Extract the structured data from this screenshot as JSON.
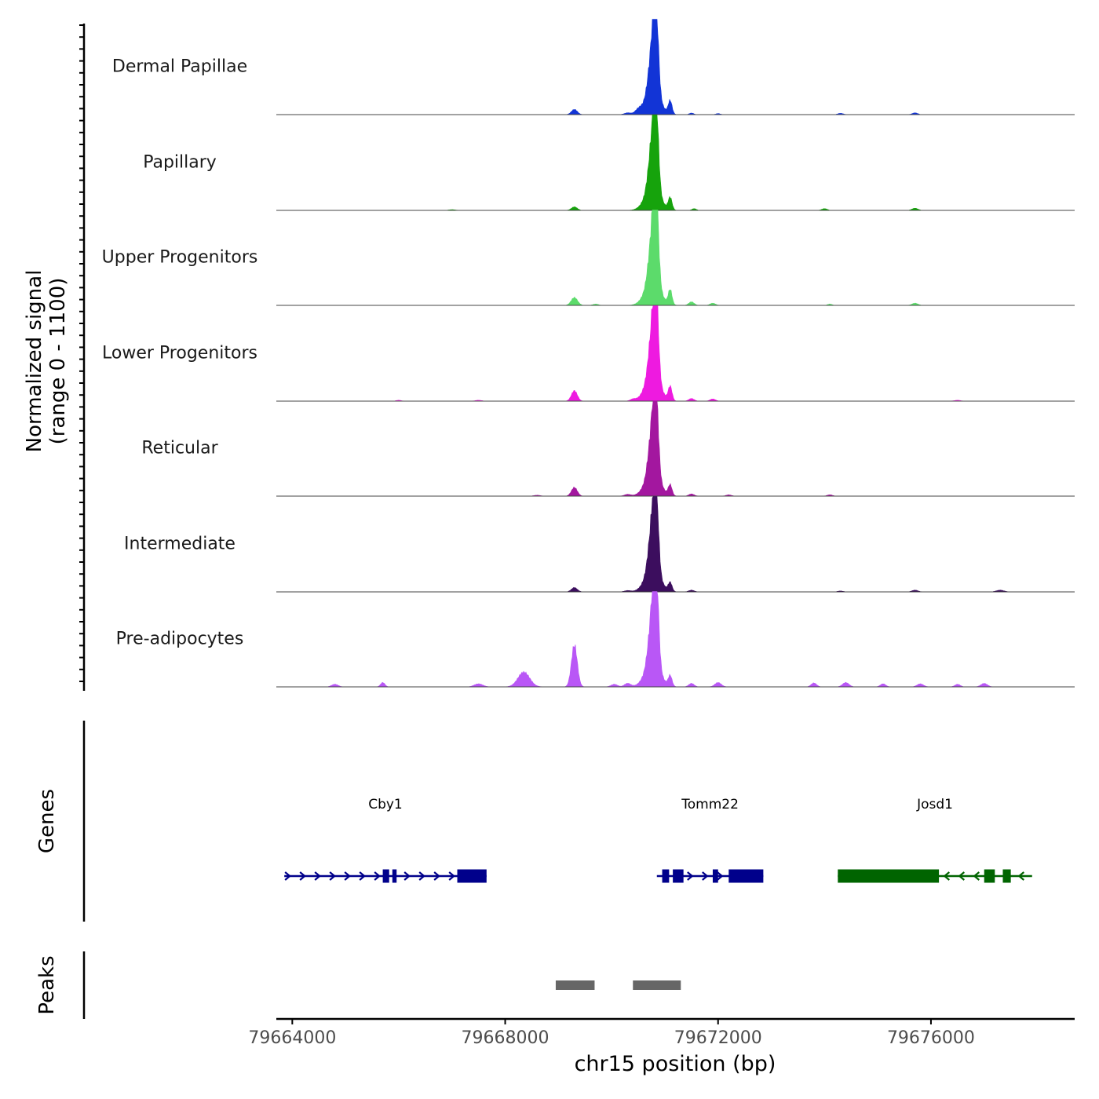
{
  "chart_data": {
    "type": "coverage",
    "y_axis_label_line1": "Normalized signal",
    "y_axis_label_line2": "(range 0 - 1100)",
    "ylim": [
      0,
      1100
    ],
    "x_axis_label": "chr15 position (bp)",
    "xlim": [
      79663700,
      79678700
    ],
    "x_ticks": [
      79664000,
      79668000,
      79672000,
      79676000
    ],
    "x_tick_labels": [
      "79664000",
      "79668000",
      "79672000",
      "79676000"
    ],
    "tracks": [
      {
        "name": "Dermal Papillae",
        "color": "#1234d6",
        "peaks": [
          [
            79669300,
            60,
            55
          ],
          [
            79670770,
            540,
            70
          ],
          [
            79670830,
            870,
            45
          ],
          [
            79670770,
            250,
            140
          ],
          [
            79671100,
            150,
            35
          ],
          [
            79670500,
            40,
            60
          ],
          [
            79670300,
            20,
            60
          ],
          [
            79671500,
            18,
            40
          ],
          [
            79672000,
            12,
            40
          ],
          [
            79674300,
            15,
            50
          ],
          [
            79675700,
            20,
            50
          ]
        ]
      },
      {
        "name": "Papillary",
        "color": "#16a30c",
        "peaks": [
          [
            79669300,
            40,
            55
          ],
          [
            79670770,
            560,
            70
          ],
          [
            79670830,
            860,
            45
          ],
          [
            79670770,
            250,
            140
          ],
          [
            79671100,
            140,
            35
          ],
          [
            79671550,
            20,
            40
          ],
          [
            79674000,
            20,
            50
          ],
          [
            79675700,
            25,
            55
          ],
          [
            79667000,
            8,
            60
          ]
        ]
      },
      {
        "name": "Upper Progenitors",
        "color": "#5cdb6b",
        "peaks": [
          [
            79669300,
            90,
            60
          ],
          [
            79670770,
            560,
            70
          ],
          [
            79670830,
            950,
            45
          ],
          [
            79670770,
            270,
            140
          ],
          [
            79671100,
            170,
            35
          ],
          [
            79671500,
            40,
            50
          ],
          [
            79671900,
            25,
            50
          ],
          [
            79669700,
            15,
            50
          ],
          [
            79674100,
            15,
            40
          ],
          [
            79675700,
            25,
            55
          ]
        ]
      },
      {
        "name": "Lower Progenitors",
        "color": "#ee1ae0",
        "peaks": [
          [
            79669300,
            120,
            55
          ],
          [
            79670770,
            560,
            70
          ],
          [
            79670830,
            880,
            45
          ],
          [
            79670770,
            270,
            140
          ],
          [
            79671100,
            160,
            35
          ],
          [
            79671500,
            30,
            50
          ],
          [
            79671900,
            25,
            50
          ],
          [
            79670400,
            20,
            50
          ],
          [
            79666000,
            10,
            50
          ],
          [
            79667500,
            10,
            60
          ],
          [
            79676500,
            10,
            60
          ]
        ]
      },
      {
        "name": "Reticular",
        "color": "#a3179f",
        "peaks": [
          [
            79669300,
            100,
            55
          ],
          [
            79670770,
            560,
            70
          ],
          [
            79670830,
            790,
            45
          ],
          [
            79670770,
            250,
            140
          ],
          [
            79671100,
            120,
            35
          ],
          [
            79671500,
            25,
            50
          ],
          [
            79672200,
            15,
            50
          ],
          [
            79674100,
            15,
            50
          ],
          [
            79670300,
            20,
            60
          ],
          [
            79668600,
            10,
            60
          ]
        ]
      },
      {
        "name": "Intermediate",
        "color": "#3c0e5e",
        "peaks": [
          [
            79669300,
            50,
            55
          ],
          [
            79670770,
            560,
            70
          ],
          [
            79670830,
            800,
            45
          ],
          [
            79670770,
            250,
            140
          ],
          [
            79671100,
            100,
            35
          ],
          [
            79671500,
            20,
            50
          ],
          [
            79670300,
            15,
            60
          ],
          [
            79677300,
            20,
            70
          ],
          [
            79675700,
            20,
            55
          ],
          [
            79674300,
            10,
            50
          ]
        ]
      },
      {
        "name": "Pre-adipocytes",
        "color": "#b957f6",
        "peaks": [
          [
            79668350,
            170,
            110
          ],
          [
            79669300,
            480,
            55
          ],
          [
            79670770,
            600,
            70
          ],
          [
            79670830,
            1000,
            45
          ],
          [
            79670770,
            270,
            140
          ],
          [
            79671100,
            120,
            35
          ],
          [
            79665700,
            50,
            40
          ],
          [
            79664800,
            30,
            60
          ],
          [
            79667500,
            35,
            80
          ],
          [
            79670300,
            40,
            60
          ],
          [
            79671500,
            40,
            50
          ],
          [
            79672000,
            50,
            60
          ],
          [
            79673800,
            45,
            50
          ],
          [
            79674400,
            50,
            60
          ],
          [
            79675100,
            35,
            50
          ],
          [
            79675800,
            35,
            60
          ],
          [
            79676500,
            30,
            50
          ],
          [
            79677000,
            40,
            60
          ],
          [
            79670050,
            30,
            60
          ]
        ]
      }
    ],
    "genes_label": "Genes",
    "genes": [
      {
        "name": "Cby1",
        "strand": "+",
        "color": "#00008b",
        "start": 79663850,
        "end": 79667650,
        "exons": [
          [
            79665700,
            79665820
          ],
          [
            79665880,
            79665960
          ],
          [
            79667100,
            79667650
          ]
        ]
      },
      {
        "name": "Tomm22",
        "strand": "+",
        "color": "#00008b",
        "start": 79670850,
        "end": 79672850,
        "exons": [
          [
            79670950,
            79671080
          ],
          [
            79671150,
            79671350
          ],
          [
            79671900,
            79672000
          ],
          [
            79672200,
            79672850
          ]
        ]
      },
      {
        "name": "Josd1",
        "strand": "-",
        "color": "#006400",
        "start": 79674250,
        "end": 79677900,
        "exons": [
          [
            79674250,
            79676150
          ],
          [
            79677000,
            79677200
          ],
          [
            79677350,
            79677500
          ]
        ]
      }
    ],
    "peaks_label": "Peaks",
    "peak_regions": [
      [
        79668950,
        79669680
      ],
      [
        79670400,
        79671300
      ]
    ]
  }
}
